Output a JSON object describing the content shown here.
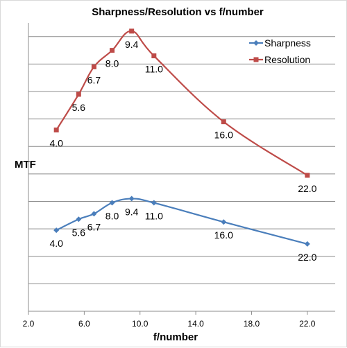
{
  "chart_data": {
    "type": "line",
    "title": "Sharpness/Resolution vs f/number",
    "xlabel": "f/number",
    "ylabel": "MTF",
    "xlim": [
      2.0,
      24.0
    ],
    "ylim": [
      0,
      10.5
    ],
    "x_tick_labels": [
      "2.0",
      "6.0",
      "10.0",
      "14.0",
      "18.0",
      "22.0"
    ],
    "x_ticks": [
      2,
      6,
      10,
      14,
      18,
      22
    ],
    "y_gridlines": [
      0,
      1,
      2,
      3,
      4,
      5,
      6,
      7,
      8,
      9,
      10
    ],
    "y_tick_labels_visible": false,
    "grid": true,
    "legend_position": "top-right",
    "x": [
      4.0,
      5.6,
      6.7,
      8.0,
      9.4,
      11.0,
      16.0,
      22.0
    ],
    "data_labels": [
      "4.0",
      "5.6",
      "6.7",
      "8.0",
      "9.4",
      "11.0",
      "16.0",
      "22.0"
    ],
    "series": [
      {
        "name": "Sharpness",
        "color": "#4a7ebb",
        "marker": "diamond",
        "values": [
          2.95,
          3.35,
          3.55,
          3.95,
          4.1,
          3.95,
          3.25,
          2.45
        ]
      },
      {
        "name": "Resolution",
        "color": "#be4b48",
        "marker": "square",
        "values": [
          6.6,
          7.9,
          8.9,
          9.5,
          10.2,
          9.3,
          6.9,
          4.95
        ]
      }
    ]
  }
}
